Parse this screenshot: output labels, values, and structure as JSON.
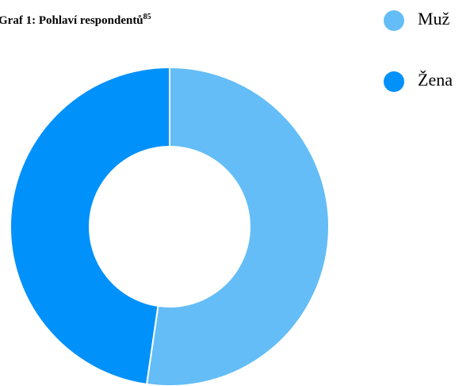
{
  "chart_data": {
    "type": "pie",
    "title": "Graf 1: Pohlaví respondentů",
    "title_superscript": "85",
    "categories": [
      "Muž",
      "Žena"
    ],
    "values": [
      52.3,
      47.7
    ],
    "colors": [
      "#64bdf6",
      "#0091fb"
    ],
    "donut": true,
    "legend": "right"
  }
}
